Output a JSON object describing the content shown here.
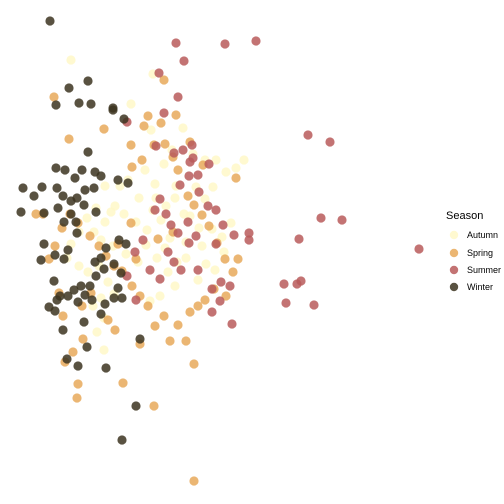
{
  "chart_data": {
    "type": "scatter",
    "title": "",
    "xlabel": "",
    "ylabel": "",
    "grid": false,
    "axes_visible": false,
    "legend_position": "right",
    "legend": {
      "title": "Season",
      "entries": [
        "Autumn",
        "Spring",
        "Summer",
        "Winter"
      ]
    },
    "series": [
      {
        "name": "Autumn",
        "color": "#FFF8C8",
        "points": [
          [
            71,
            60
          ],
          [
            131,
            104
          ],
          [
            151,
            130
          ],
          [
            128,
            180
          ],
          [
            105,
            186
          ],
          [
            115,
            206
          ],
          [
            124,
            214
          ],
          [
            139,
            198
          ],
          [
            136,
            222
          ],
          [
            147,
            230
          ],
          [
            156,
            198
          ],
          [
            166,
            206
          ],
          [
            176,
            186
          ],
          [
            175,
            198
          ],
          [
            184,
            214
          ],
          [
            196,
            187
          ],
          [
            205,
            199
          ],
          [
            213,
            187
          ],
          [
            190,
            216
          ],
          [
            199,
            228
          ],
          [
            202,
            246
          ],
          [
            186,
            242
          ],
          [
            170,
            238
          ],
          [
            161,
            220
          ],
          [
            153,
            210
          ],
          [
            146,
            245
          ],
          [
            138,
            262
          ],
          [
            126,
            254
          ],
          [
            113,
            246
          ],
          [
            101,
            240
          ],
          [
            94,
            232
          ],
          [
            105,
            222
          ],
          [
            111,
            212
          ],
          [
            96,
            208
          ],
          [
            87,
            218
          ],
          [
            79,
            232
          ],
          [
            71,
            244
          ],
          [
            67,
            258
          ],
          [
            79,
            266
          ],
          [
            88,
            272
          ],
          [
            99,
            266
          ],
          [
            108,
            282
          ],
          [
            114,
            294
          ],
          [
            101,
            298
          ],
          [
            93,
            306
          ],
          [
            104,
            318
          ],
          [
            97,
            332
          ],
          [
            104,
            350
          ],
          [
            145,
            170
          ],
          [
            155,
            184
          ],
          [
            164,
            164
          ],
          [
            172,
            150
          ],
          [
            183,
            128
          ],
          [
            193,
            154
          ],
          [
            205,
            160
          ],
          [
            216,
            160
          ],
          [
            226,
            172
          ],
          [
            236,
            168
          ],
          [
            244,
            160
          ],
          [
            231,
            223
          ],
          [
            222,
            237
          ],
          [
            212,
            229
          ],
          [
            168,
            272
          ],
          [
            177,
            262
          ],
          [
            186,
            258
          ],
          [
            175,
            286
          ],
          [
            160,
            296
          ],
          [
            150,
            301
          ],
          [
            165,
            248
          ],
          [
            157,
            258
          ],
          [
            198,
            280
          ],
          [
            206,
            264
          ],
          [
            215,
            270
          ],
          [
            224,
            252
          ],
          [
            153,
            74
          ],
          [
            120,
            186
          ]
        ]
      },
      {
        "name": "Spring",
        "color": "#E8A95A",
        "points": [
          [
            54,
            97
          ],
          [
            104,
            129
          ],
          [
            69,
            139
          ],
          [
            131,
            145
          ],
          [
            132,
            167
          ],
          [
            142,
            160
          ],
          [
            144,
            126
          ],
          [
            154,
            145
          ],
          [
            148,
            116
          ],
          [
            161,
            123
          ],
          [
            165,
            144
          ],
          [
            173,
            157
          ],
          [
            178,
            170
          ],
          [
            188,
            196
          ],
          [
            194,
            205
          ],
          [
            202,
            215
          ],
          [
            209,
            226
          ],
          [
            217,
            243
          ],
          [
            225,
            259
          ],
          [
            233,
            272
          ],
          [
            238,
            259
          ],
          [
            214,
            289
          ],
          [
            226,
            296
          ],
          [
            205,
            300
          ],
          [
            198,
            306
          ],
          [
            190,
            312
          ],
          [
            178,
            325
          ],
          [
            170,
            341
          ],
          [
            186,
            341
          ],
          [
            194,
            364
          ],
          [
            155,
            326
          ],
          [
            164,
            316
          ],
          [
            148,
            306
          ],
          [
            140,
            296
          ],
          [
            132,
            286
          ],
          [
            122,
            271
          ],
          [
            114,
            266
          ],
          [
            106,
            256
          ],
          [
            99,
            246
          ],
          [
            90,
            236
          ],
          [
            78,
            223
          ],
          [
            70,
            214
          ],
          [
            62,
            228
          ],
          [
            55,
            246
          ],
          [
            49,
            259
          ],
          [
            43,
            214
          ],
          [
            36,
            214
          ],
          [
            59,
            293
          ],
          [
            63,
            316
          ],
          [
            82,
            306
          ],
          [
            91,
            293
          ],
          [
            83,
            339
          ],
          [
            73,
            352
          ],
          [
            65,
            362
          ],
          [
            78,
            384
          ],
          [
            77,
            398
          ],
          [
            123,
            383
          ],
          [
            154,
            406
          ],
          [
            194,
            481
          ],
          [
            140,
            344
          ],
          [
            115,
            330
          ],
          [
            108,
            320
          ],
          [
            236,
            178
          ],
          [
            203,
            165
          ],
          [
            190,
            142
          ],
          [
            173,
            232
          ],
          [
            131,
            223
          ],
          [
            158,
            239
          ],
          [
            136,
            259
          ],
          [
            118,
            244
          ],
          [
            176,
            115
          ],
          [
            164,
            80
          ]
        ]
      },
      {
        "name": "Summer",
        "color": "#B85B5B",
        "points": [
          [
            176,
            43
          ],
          [
            225,
            44
          ],
          [
            256,
            41
          ],
          [
            184,
            61
          ],
          [
            159,
            73
          ],
          [
            178,
            97
          ],
          [
            164,
            113
          ],
          [
            127,
            122
          ],
          [
            156,
            146
          ],
          [
            174,
            153
          ],
          [
            183,
            150
          ],
          [
            192,
            145
          ],
          [
            190,
            162
          ],
          [
            198,
            175
          ],
          [
            209,
            164
          ],
          [
            189,
            176
          ],
          [
            199,
            192
          ],
          [
            208,
            206
          ],
          [
            216,
            210
          ],
          [
            223,
            225
          ],
          [
            234,
            235
          ],
          [
            249,
            240
          ],
          [
            249,
            233
          ],
          [
            216,
            244
          ],
          [
            196,
            236
          ],
          [
            189,
            243
          ],
          [
            178,
            233
          ],
          [
            171,
            225
          ],
          [
            166,
            214
          ],
          [
            160,
            199
          ],
          [
            155,
            210
          ],
          [
            168,
            252
          ],
          [
            174,
            262
          ],
          [
            181,
            270
          ],
          [
            198,
            270
          ],
          [
            212,
            289
          ],
          [
            221,
            282
          ],
          [
            230,
            286
          ],
          [
            220,
            301
          ],
          [
            212,
            312
          ],
          [
            232,
            324
          ],
          [
            286,
            303
          ],
          [
            284,
            284
          ],
          [
            297,
            284
          ],
          [
            301,
            281
          ],
          [
            314,
            305
          ],
          [
            299,
            239
          ],
          [
            321,
            218
          ],
          [
            342,
            220
          ],
          [
            308,
            135
          ],
          [
            330,
            142
          ],
          [
            419,
            249
          ],
          [
            193,
            158
          ],
          [
            180,
            185
          ],
          [
            188,
            222
          ],
          [
            143,
            240
          ],
          [
            135,
            252
          ],
          [
            150,
            270
          ],
          [
            160,
            279
          ],
          [
            127,
            276
          ],
          [
            136,
            300
          ]
        ]
      },
      {
        "name": "Winter",
        "color": "#3C3420",
        "points": [
          [
            50,
            21
          ],
          [
            88,
            81
          ],
          [
            69,
            88
          ],
          [
            79,
            103
          ],
          [
            91,
            104
          ],
          [
            56,
            105
          ],
          [
            113,
            108
          ],
          [
            124,
            119
          ],
          [
            88,
            152
          ],
          [
            95,
            172
          ],
          [
            101,
            176
          ],
          [
            82,
            170
          ],
          [
            65,
            170
          ],
          [
            75,
            178
          ],
          [
            56,
            168
          ],
          [
            57,
            188
          ],
          [
            63,
            196
          ],
          [
            42,
            187
          ],
          [
            23,
            188
          ],
          [
            34,
            196
          ],
          [
            21,
            212
          ],
          [
            44,
            213
          ],
          [
            58,
            208
          ],
          [
            64,
            222
          ],
          [
            71,
            214
          ],
          [
            77,
            198
          ],
          [
            85,
            190
          ],
          [
            94,
            188
          ],
          [
            84,
            205
          ],
          [
            76,
            222
          ],
          [
            77,
            233
          ],
          [
            68,
            250
          ],
          [
            64,
            259
          ],
          [
            55,
            255
          ],
          [
            44,
            244
          ],
          [
            41,
            260
          ],
          [
            54,
            281
          ],
          [
            49,
            307
          ],
          [
            57,
            300
          ],
          [
            68,
            296
          ],
          [
            74,
            290
          ],
          [
            78,
            302
          ],
          [
            85,
            295
          ],
          [
            90,
            286
          ],
          [
            96,
            276
          ],
          [
            104,
            269
          ],
          [
            114,
            264
          ],
          [
            121,
            273
          ],
          [
            118,
            288
          ],
          [
            114,
            298
          ],
          [
            105,
            304
          ],
          [
            101,
            314
          ],
          [
            84,
            322
          ],
          [
            87,
            347
          ],
          [
            67,
            359
          ],
          [
            78,
            366
          ],
          [
            106,
            368
          ],
          [
            122,
            440
          ],
          [
            136,
            406
          ],
          [
            140,
            339
          ],
          [
            128,
            183
          ],
          [
            118,
            180
          ],
          [
            119,
            240
          ],
          [
            106,
            248
          ],
          [
            101,
            258
          ],
          [
            95,
            262
          ],
          [
            81,
            286
          ],
          [
            92,
            300
          ],
          [
            63,
            330
          ],
          [
            55,
            311
          ],
          [
            113,
            110
          ],
          [
            60,
            296
          ],
          [
            96,
            212
          ],
          [
            126,
            244
          ],
          [
            122,
            298
          ],
          [
            71,
            201
          ]
        ]
      }
    ]
  }
}
